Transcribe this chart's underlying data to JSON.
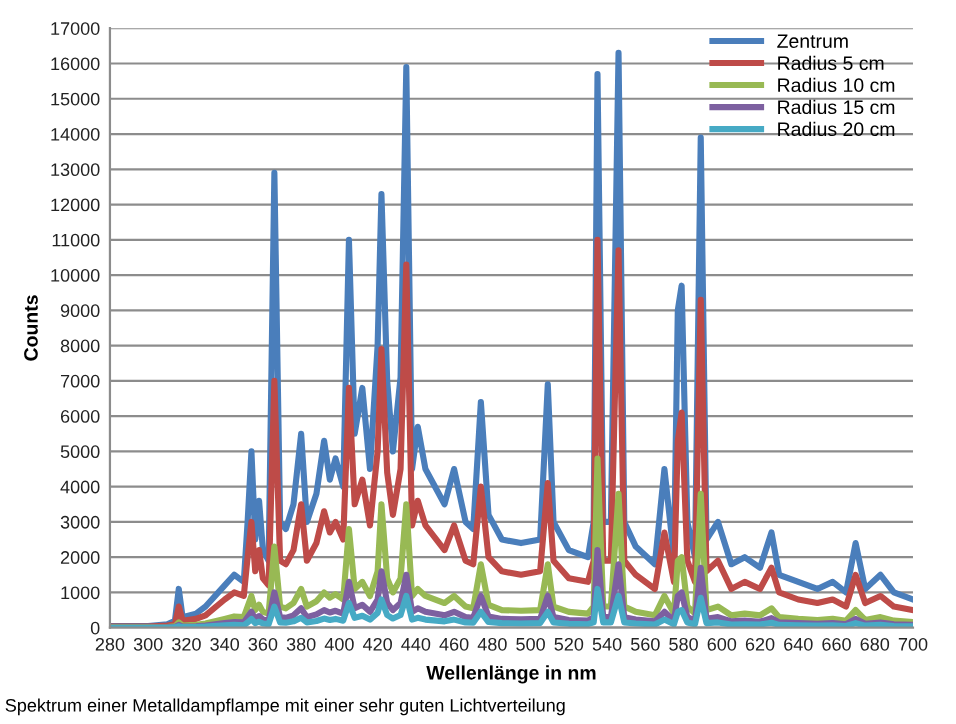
{
  "chart_data": {
    "type": "line",
    "xlabel": "Wellenlänge in nm",
    "ylabel": "Counts",
    "annotations": [
      "Spektrum einer Metalldampflampe mit einer sehr guten Lichtverteilung"
    ],
    "x": [
      280,
      300,
      310,
      314,
      316,
      318,
      325,
      330,
      340,
      345,
      350,
      352,
      354,
      356,
      358,
      360,
      363,
      366,
      369,
      372,
      376,
      380,
      383,
      388,
      392,
      395,
      398,
      402,
      405,
      408,
      412,
      416,
      420,
      422,
      425,
      428,
      432,
      435,
      438,
      441,
      445,
      455,
      460,
      466,
      470,
      474,
      478,
      485,
      495,
      505,
      509,
      512,
      520,
      530,
      533,
      535,
      538,
      542,
      546,
      549,
      555,
      565,
      570,
      575,
      577,
      579,
      582,
      586,
      589,
      592,
      598,
      605,
      612,
      620,
      626,
      630,
      640,
      650,
      658,
      665,
      670,
      675,
      683,
      690,
      700
    ],
    "xlim": [
      280,
      700
    ],
    "xticks": [
      280,
      300,
      320,
      340,
      360,
      380,
      400,
      420,
      440,
      460,
      480,
      500,
      520,
      540,
      560,
      580,
      600,
      620,
      640,
      660,
      680,
      700
    ],
    "ylim": [
      0,
      17000
    ],
    "yticks": [
      0,
      1000,
      2000,
      3000,
      4000,
      5000,
      6000,
      7000,
      8000,
      9000,
      10000,
      11000,
      12000,
      13000,
      14000,
      15000,
      16000,
      17000
    ],
    "grid": "y",
    "legend": "top right",
    "marker": "none",
    "line_style": "solid",
    "series": [
      {
        "name": "Zentrum",
        "color": "#4a7ebb",
        "values": [
          50,
          50,
          100,
          200,
          1100,
          300,
          400,
          600,
          1200,
          1500,
          1300,
          3000,
          5000,
          2500,
          3600,
          2200,
          1900,
          12900,
          3000,
          2800,
          3500,
          5500,
          3000,
          3800,
          5300,
          4200,
          4800,
          4000,
          11000,
          5500,
          6800,
          4500,
          8000,
          12300,
          7000,
          5000,
          7100,
          15900,
          4500,
          5700,
          4500,
          3500,
          4500,
          3000,
          2800,
          6400,
          3200,
          2500,
          2400,
          2500,
          6900,
          3000,
          2200,
          2000,
          3000,
          15700,
          3000,
          3000,
          16300,
          3000,
          2300,
          1800,
          4500,
          2000,
          9000,
          9700,
          3000,
          2000,
          13900,
          2500,
          3000,
          1800,
          2000,
          1700,
          2700,
          1500,
          1300,
          1100,
          1300,
          1000,
          2400,
          1100,
          1500,
          1000,
          800
        ]
      },
      {
        "name": "Radius 5 cm",
        "color": "#be4b48",
        "values": [
          30,
          30,
          60,
          100,
          600,
          200,
          250,
          350,
          800,
          1000,
          900,
          2000,
          3000,
          1600,
          2200,
          1400,
          1200,
          7000,
          1900,
          1800,
          2200,
          3500,
          1900,
          2400,
          3300,
          2700,
          3000,
          2500,
          6800,
          3500,
          4200,
          2900,
          5000,
          7900,
          4400,
          3200,
          4500,
          10300,
          2900,
          3600,
          2900,
          2200,
          2900,
          1900,
          1800,
          4000,
          2000,
          1600,
          1500,
          1600,
          4100,
          1900,
          1400,
          1300,
          1900,
          11000,
          1900,
          1900,
          10700,
          1900,
          1500,
          1100,
          2700,
          1300,
          5300,
          6100,
          1900,
          1300,
          9300,
          1600,
          1900,
          1100,
          1300,
          1100,
          1700,
          1000,
          800,
          700,
          800,
          600,
          1500,
          700,
          900,
          600,
          500
        ]
      },
      {
        "name": "Radius 10 cm",
        "color": "#98b954",
        "values": [
          10,
          10,
          20,
          40,
          150,
          60,
          80,
          120,
          250,
          320,
          300,
          600,
          900,
          500,
          650,
          450,
          400,
          2300,
          600,
          550,
          700,
          1100,
          600,
          750,
          1000,
          850,
          950,
          800,
          2800,
          1100,
          1300,
          900,
          1600,
          3500,
          1400,
          1000,
          1400,
          3500,
          900,
          1100,
          900,
          700,
          900,
          600,
          550,
          1800,
          650,
          500,
          480,
          500,
          1800,
          600,
          450,
          400,
          600,
          4800,
          600,
          600,
          3800,
          600,
          450,
          350,
          900,
          400,
          1900,
          2000,
          600,
          400,
          3800,
          500,
          600,
          350,
          400,
          350,
          550,
          300,
          250,
          220,
          250,
          200,
          500,
          220,
          300,
          200,
          160
        ]
      },
      {
        "name": "Radius 15 cm",
        "color": "#7d60a0",
        "values": [
          0,
          0,
          10,
          20,
          80,
          30,
          40,
          60,
          130,
          160,
          150,
          300,
          450,
          250,
          330,
          230,
          200,
          1000,
          300,
          280,
          350,
          550,
          300,
          380,
          500,
          430,
          480,
          400,
          1300,
          550,
          650,
          450,
          800,
          1600,
          700,
          500,
          700,
          1500,
          450,
          550,
          450,
          350,
          450,
          300,
          280,
          900,
          320,
          250,
          240,
          250,
          900,
          300,
          220,
          200,
          300,
          2200,
          300,
          300,
          1800,
          300,
          230,
          180,
          450,
          200,
          900,
          1000,
          300,
          200,
          1700,
          250,
          300,
          180,
          200,
          170,
          270,
          150,
          130,
          110,
          130,
          100,
          250,
          110,
          150,
          100,
          80
        ]
      },
      {
        "name": "Radius 20 cm",
        "color": "#46aac5",
        "values": [
          0,
          0,
          0,
          10,
          40,
          15,
          20,
          30,
          70,
          80,
          70,
          150,
          250,
          130,
          170,
          120,
          100,
          600,
          150,
          140,
          180,
          280,
          150,
          190,
          260,
          220,
          250,
          200,
          700,
          280,
          340,
          230,
          420,
          800,
          360,
          260,
          360,
          900,
          230,
          280,
          230,
          180,
          230,
          150,
          140,
          450,
          160,
          130,
          120,
          130,
          450,
          150,
          110,
          100,
          150,
          1100,
          150,
          150,
          900,
          150,
          120,
          90,
          230,
          100,
          450,
          500,
          150,
          100,
          850,
          130,
          150,
          90,
          100,
          90,
          140,
          80,
          70,
          60,
          70,
          50,
          130,
          60,
          80,
          50,
          40
        ]
      }
    ]
  }
}
